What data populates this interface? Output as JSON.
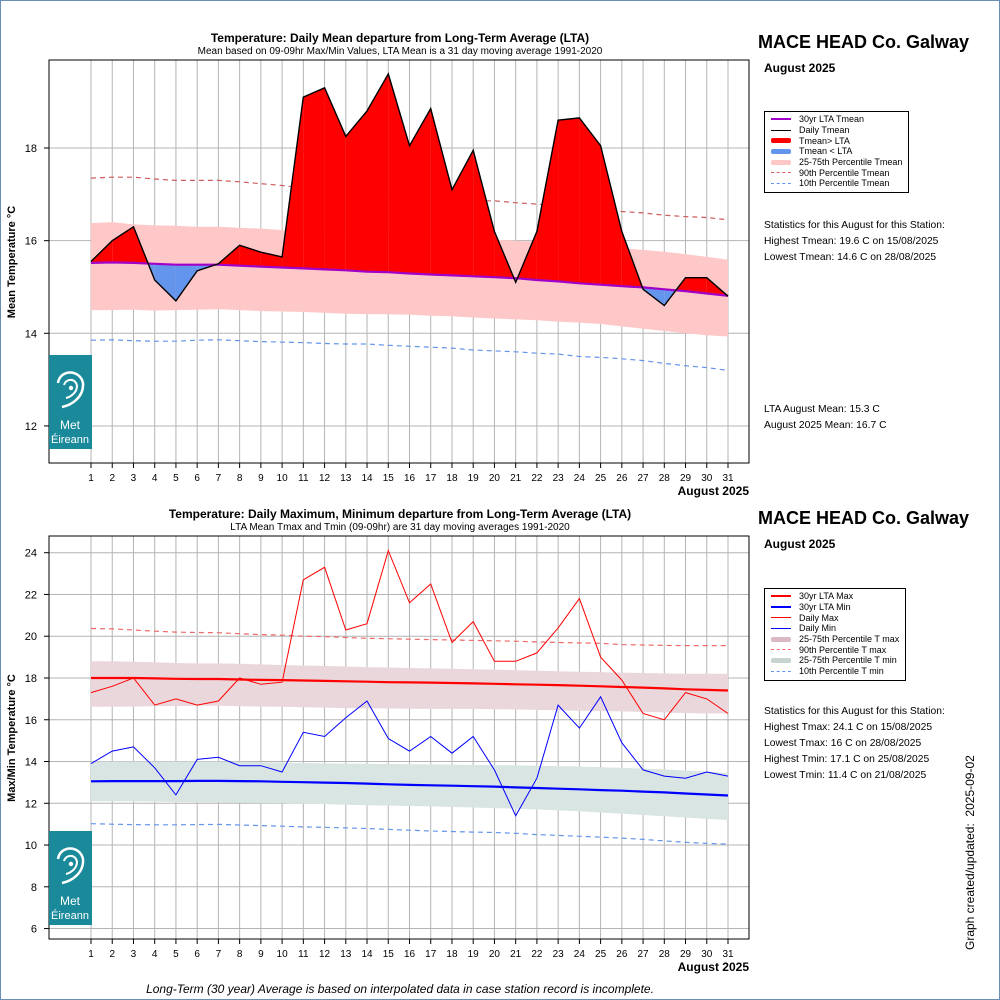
{
  "page": {
    "footnote": "Long-Term (30 year) Average is based on interpolated data in case station record is incomplete.",
    "created_label": "Graph created/updated:",
    "created_date": "2025-09-02",
    "logo_text_1": "Met",
    "logo_text_2": "Éireann"
  },
  "panel1": {
    "station": "MACE HEAD Co. Galway",
    "period": "August 2025",
    "legend": [
      {
        "label": "30yr LTA Tmean",
        "color": "#a000c8",
        "style": "line-thick"
      },
      {
        "label": "Daily Tmean",
        "color": "#000000",
        "style": "line"
      },
      {
        "label": "Tmean> LTA",
        "color": "#ff0000",
        "style": "bar-red"
      },
      {
        "label": "Tmean < LTA",
        "color": "#6495ed",
        "style": "bar-blue"
      },
      {
        "label": "25-75th Percentile Tmean",
        "color": "#ffc8c8",
        "style": "band"
      },
      {
        "label": "90th Percentile Tmean",
        "color": "#cd5c5c",
        "style": "dash"
      },
      {
        "label": "10th Percentile Tmean",
        "color": "#6495ed",
        "style": "dash"
      }
    ],
    "stats_title": "Statistics for this August for this Station:",
    "stats": [
      "Highest Tmean: 19.6 C on 15/08/2025",
      "Lowest Tmean: 14.6 C on 28/08/2025"
    ],
    "means": [
      "LTA August Mean: 15.3 C",
      "August 2025 Mean: 16.7 C"
    ]
  },
  "panel2": {
    "station": "MACE HEAD Co. Galway",
    "period": "August 2025",
    "legend": [
      {
        "label": "30yr LTA Max",
        "color": "#ff0000",
        "style": "line-thick"
      },
      {
        "label": "30yr LTA Min",
        "color": "#0000ff",
        "style": "line-thick"
      },
      {
        "label": "Daily Max",
        "color": "#ff0000",
        "style": "line"
      },
      {
        "label": "Daily Min",
        "color": "#0000ff",
        "style": "line"
      },
      {
        "label": "25-75th Percentile T max",
        "color": "#dbb9c4",
        "style": "band"
      },
      {
        "label": "90th Percentile T max",
        "color": "#ee6a6a",
        "style": "dash"
      },
      {
        "label": "25-75th Percentile T min",
        "color": "#c6d3cf",
        "style": "band"
      },
      {
        "label": "10th Percentile T min",
        "color": "#6495ed",
        "style": "dash"
      }
    ],
    "stats_title": "Statistics for this August for this Station:",
    "stats": [
      "Highest Tmax: 24.1 C on 15/08/2025",
      "Lowest Tmax: 16 C on 28/08/2025",
      "Highest Tmin: 17.1 C on 25/08/2025",
      "Lowest Tmin: 11.4 C on 21/08/2025"
    ]
  },
  "chart_data": [
    {
      "type": "line",
      "title": "Temperature: Daily Mean departure from Long-Term Average (LTA)",
      "subtitle": "Mean based on 09-09hr Max/Min Values, LTA Mean is a 31 day moving average 1991-2020",
      "ylabel": "Mean Temperature °C",
      "xlabel": "August 2025",
      "ylim": [
        11.2,
        19.9
      ],
      "yticks": [
        12,
        14,
        16,
        18
      ],
      "x": [
        1,
        2,
        3,
        4,
        5,
        6,
        7,
        8,
        9,
        10,
        11,
        12,
        13,
        14,
        15,
        16,
        17,
        18,
        19,
        20,
        21,
        22,
        23,
        24,
        25,
        26,
        27,
        28,
        29,
        30,
        31
      ],
      "series": [
        {
          "name": "Daily Tmean",
          "values": [
            15.55,
            16.0,
            16.3,
            15.15,
            14.7,
            15.35,
            15.5,
            15.9,
            15.75,
            15.65,
            19.1,
            19.3,
            18.25,
            18.8,
            19.6,
            18.05,
            18.85,
            17.1,
            17.95,
            16.2,
            15.1,
            16.2,
            18.6,
            18.65,
            18.05,
            16.2,
            14.95,
            14.6,
            15.2,
            15.2,
            14.8
          ]
        },
        {
          "name": "30yr LTA Tmean",
          "values": [
            15.52,
            15.53,
            15.52,
            15.5,
            15.48,
            15.48,
            15.48,
            15.46,
            15.44,
            15.42,
            15.4,
            15.38,
            15.36,
            15.33,
            15.32,
            15.29,
            15.27,
            15.25,
            15.23,
            15.21,
            15.19,
            15.15,
            15.12,
            15.08,
            15.05,
            15.02,
            14.99,
            14.95,
            14.91,
            14.86,
            14.81
          ]
        },
        {
          "name": "25-75th Percentile Tmean",
          "lower": [
            14.5,
            14.5,
            14.51,
            14.49,
            14.5,
            14.51,
            14.52,
            14.5,
            14.48,
            14.47,
            14.46,
            14.44,
            14.42,
            14.41,
            14.41,
            14.4,
            14.38,
            14.37,
            14.34,
            14.32,
            14.3,
            14.28,
            14.25,
            14.23,
            14.2,
            14.15,
            14.1,
            14.05,
            14.0,
            13.96,
            13.93
          ],
          "upper": [
            16.38,
            16.4,
            16.35,
            16.33,
            16.32,
            16.3,
            16.3,
            16.28,
            16.26,
            16.23,
            16.2,
            16.18,
            16.16,
            16.14,
            16.12,
            16.1,
            16.08,
            16.06,
            16.04,
            16.02,
            16.0,
            15.98,
            15.95,
            15.92,
            15.89,
            15.84,
            15.8,
            15.76,
            15.71,
            15.65,
            15.59
          ]
        },
        {
          "name": "90th Percentile Tmean",
          "values": [
            17.35,
            17.37,
            17.37,
            17.33,
            17.3,
            17.3,
            17.3,
            17.27,
            17.23,
            17.19,
            17.14,
            17.1,
            17.06,
            17.03,
            17.0,
            16.96,
            16.93,
            16.89,
            16.86,
            16.86,
            16.82,
            16.79,
            16.76,
            16.72,
            16.67,
            16.63,
            16.6,
            16.55,
            16.52,
            16.5,
            16.45
          ]
        },
        {
          "name": "10th Percentile Tmean",
          "values": [
            13.85,
            13.86,
            13.84,
            13.83,
            13.83,
            13.85,
            13.86,
            13.84,
            13.82,
            13.81,
            13.8,
            13.78,
            13.77,
            13.77,
            13.74,
            13.72,
            13.7,
            13.68,
            13.64,
            13.62,
            13.6,
            13.57,
            13.55,
            13.5,
            13.48,
            13.45,
            13.41,
            13.35,
            13.3,
            13.26,
            13.2
          ]
        }
      ]
    },
    {
      "type": "line",
      "title": "Temperature: Daily Maximum, Minimum departure from Long-Term Average (LTA)",
      "subtitle": "LTA Mean Tmax and Tmin (09-09hr) are 31 day moving averages 1991-2020",
      "ylabel": "Max/Min Temperature °C",
      "xlabel": "August 2025",
      "ylim": [
        5.5,
        24.8
      ],
      "yticks": [
        6,
        8,
        10,
        12,
        14,
        16,
        18,
        20,
        22,
        24
      ],
      "x": [
        1,
        2,
        3,
        4,
        5,
        6,
        7,
        8,
        9,
        10,
        11,
        12,
        13,
        14,
        15,
        16,
        17,
        18,
        19,
        20,
        21,
        22,
        23,
        24,
        25,
        26,
        27,
        28,
        29,
        30,
        31
      ],
      "series": [
        {
          "name": "Daily Max",
          "values": [
            17.3,
            17.6,
            18.0,
            16.7,
            17.0,
            16.7,
            16.9,
            18.0,
            17.7,
            17.8,
            22.7,
            23.3,
            20.3,
            20.6,
            24.1,
            21.6,
            22.5,
            19.7,
            20.7,
            18.8,
            18.8,
            19.2,
            20.4,
            21.8,
            19.0,
            17.9,
            16.3,
            16.0,
            17.3,
            17.0,
            16.3
          ]
        },
        {
          "name": "Daily Min",
          "values": [
            13.9,
            14.5,
            14.7,
            13.7,
            12.4,
            14.1,
            14.2,
            13.8,
            13.8,
            13.5,
            15.4,
            15.2,
            16.1,
            16.9,
            15.1,
            14.5,
            15.2,
            14.4,
            15.2,
            13.6,
            11.4,
            13.2,
            16.7,
            15.6,
            17.1,
            14.9,
            13.6,
            13.3,
            13.2,
            13.5,
            13.3
          ]
        },
        {
          "name": "30yr LTA Max",
          "values": [
            18.0,
            18.0,
            18.0,
            17.98,
            17.96,
            17.95,
            17.95,
            17.93,
            17.91,
            17.9,
            17.88,
            17.86,
            17.84,
            17.82,
            17.8,
            17.79,
            17.78,
            17.76,
            17.74,
            17.72,
            17.7,
            17.68,
            17.66,
            17.63,
            17.6,
            17.57,
            17.54,
            17.5,
            17.46,
            17.43,
            17.4
          ]
        },
        {
          "name": "30yr LTA Min",
          "values": [
            13.05,
            13.06,
            13.06,
            13.06,
            13.06,
            13.07,
            13.07,
            13.06,
            13.05,
            13.03,
            13.01,
            12.99,
            12.97,
            12.94,
            12.91,
            12.88,
            12.86,
            12.84,
            12.82,
            12.8,
            12.76,
            12.73,
            12.7,
            12.67,
            12.63,
            12.6,
            12.56,
            12.52,
            12.47,
            12.42,
            12.37
          ]
        },
        {
          "name": "25-75th Percentile T max",
          "lower": [
            16.62,
            16.62,
            16.63,
            16.65,
            16.66,
            16.67,
            16.67,
            16.65,
            16.63,
            16.62,
            16.6,
            16.58,
            16.56,
            16.55,
            16.54,
            16.53,
            16.52,
            16.52,
            16.52,
            16.5,
            16.49,
            16.47,
            16.45,
            16.43,
            16.42,
            16.4,
            16.37,
            16.35,
            16.32,
            16.3,
            16.3
          ],
          "upper": [
            18.8,
            18.8,
            18.78,
            18.75,
            18.72,
            18.7,
            18.7,
            18.68,
            18.65,
            18.62,
            18.6,
            18.58,
            18.55,
            18.52,
            18.5,
            18.48,
            18.46,
            18.44,
            18.42,
            18.4,
            18.38,
            18.35,
            18.32,
            18.3,
            18.28,
            18.26,
            18.24,
            18.22,
            18.2,
            18.2,
            18.2
          ]
        },
        {
          "name": "90th Percentile T max",
          "values": [
            20.37,
            20.35,
            20.3,
            20.24,
            20.2,
            20.18,
            20.17,
            20.12,
            20.08,
            20.05,
            20.0,
            19.98,
            19.94,
            19.9,
            19.88,
            19.86,
            19.84,
            19.82,
            19.8,
            19.78,
            19.76,
            19.73,
            19.7,
            19.68,
            19.66,
            19.6,
            19.58,
            19.56,
            19.55,
            19.55,
            19.55
          ]
        },
        {
          "name": "25-75th Percentile T min",
          "lower": [
            12.1,
            12.1,
            12.09,
            12.08,
            12.06,
            12.05,
            12.05,
            12.03,
            12.01,
            12.0,
            11.98,
            11.96,
            11.93,
            11.91,
            11.89,
            11.87,
            11.85,
            11.82,
            11.8,
            11.77,
            11.74,
            11.7,
            11.66,
            11.62,
            11.56,
            11.5,
            11.44,
            11.38,
            11.32,
            11.25,
            11.2
          ],
          "upper": [
            14.0,
            14.0,
            14.0,
            14.0,
            14.0,
            14.0,
            14.0,
            13.99,
            13.97,
            13.95,
            13.93,
            13.91,
            13.9,
            13.89,
            13.88,
            13.87,
            13.86,
            13.85,
            13.84,
            13.83,
            13.82,
            13.8,
            13.78,
            13.76,
            13.73,
            13.7,
            13.66,
            13.62,
            13.57,
            13.52,
            13.45
          ]
        },
        {
          "name": "10th Percentile T min",
          "values": [
            11.02,
            11.0,
            10.98,
            10.97,
            10.97,
            10.98,
            10.99,
            10.96,
            10.93,
            10.9,
            10.87,
            10.85,
            10.82,
            10.79,
            10.75,
            10.71,
            10.67,
            10.65,
            10.62,
            10.6,
            10.56,
            10.5,
            10.46,
            10.42,
            10.38,
            10.33,
            10.27,
            10.2,
            10.13,
            10.08,
            10.05
          ]
        }
      ]
    }
  ]
}
